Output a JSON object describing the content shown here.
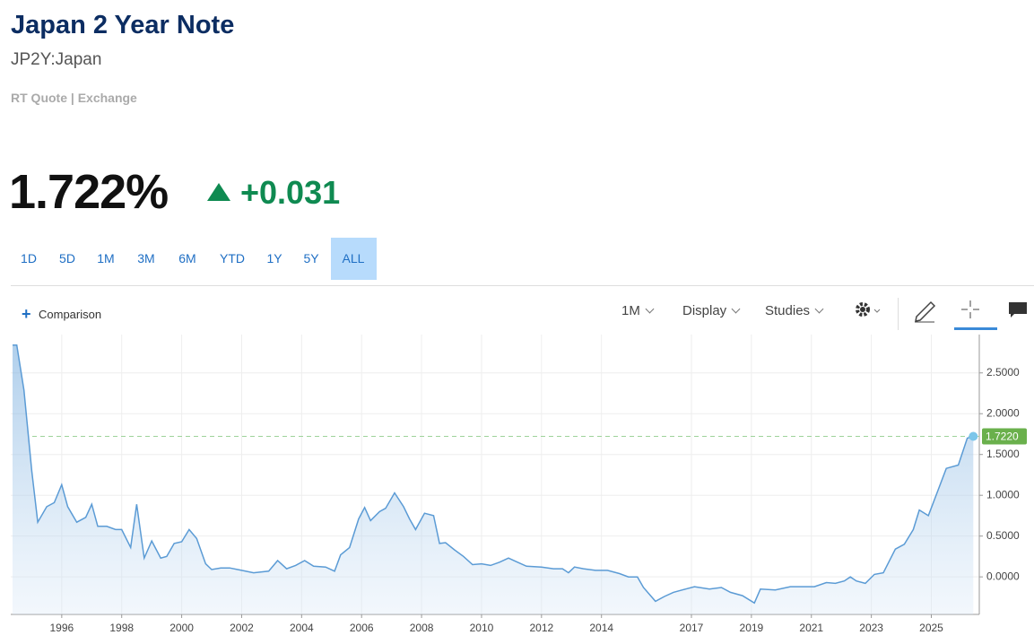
{
  "header": {
    "title": "Japan 2 Year Note",
    "symbol": "JP2Y:Japan",
    "quote_source": "RT Quote | Exchange"
  },
  "quote": {
    "price": "1.722%",
    "change": "+0.031"
  },
  "ranges": [
    "1D",
    "5D",
    "1M",
    "3M",
    "6M",
    "YTD",
    "1Y",
    "5Y",
    "ALL"
  ],
  "active_range": 8,
  "toolbar": {
    "comparison": "Comparison",
    "interval": "1M",
    "display": "Display",
    "studies": "Studies"
  },
  "chart_data": {
    "type": "area",
    "color": "#5b9bd5",
    "grid": true,
    "x": [
      1994.36,
      1994.5,
      1994.74,
      1995.0,
      1995.2,
      1995.5,
      1995.75,
      1996.0,
      1996.2,
      1996.5,
      1996.8,
      1997.0,
      1997.2,
      1997.5,
      1997.8,
      1998.0,
      1998.3,
      1998.5,
      1998.75,
      1999.0,
      1999.3,
      1999.5,
      1999.75,
      2000.0,
      2000.25,
      2000.5,
      2000.8,
      2001.0,
      2001.3,
      2001.6,
      2002.0,
      2002.4,
      2002.9,
      2003.2,
      2003.5,
      2003.8,
      2004.1,
      2004.4,
      2004.8,
      2005.1,
      2005.3,
      2005.6,
      2005.9,
      2006.1,
      2006.3,
      2006.6,
      2006.8,
      2007.1,
      2007.4,
      2007.6,
      2007.8,
      2008.1,
      2008.4,
      2008.6,
      2008.8,
      2009.1,
      2009.4,
      2009.7,
      2010.0,
      2010.3,
      2010.6,
      2010.9,
      2011.2,
      2011.5,
      2012.0,
      2012.4,
      2012.7,
      2012.9,
      2013.1,
      2013.4,
      2013.8,
      2014.2,
      2014.6,
      2014.9,
      2015.2,
      2015.4,
      2015.8,
      2016.1,
      2016.4,
      2016.8,
      2017.1,
      2017.6,
      2018.0,
      2018.3,
      2018.7,
      2019.1,
      2019.3,
      2019.8,
      2020.3,
      2020.7,
      2021.1,
      2021.5,
      2021.8,
      2022.1,
      2022.3,
      2022.5,
      2022.8,
      2023.1,
      2023.4,
      2023.8,
      2024.1,
      2024.4,
      2024.6,
      2024.9,
      2025.2,
      2025.5,
      2025.9,
      2026.2,
      2026.4
    ],
    "values": [
      2.84,
      2.84,
      2.29,
      1.3,
      0.67,
      0.86,
      0.91,
      1.13,
      0.86,
      0.67,
      0.73,
      0.89,
      0.62,
      0.62,
      0.58,
      0.58,
      0.36,
      0.89,
      0.23,
      0.44,
      0.23,
      0.25,
      0.41,
      0.43,
      0.58,
      0.47,
      0.16,
      0.09,
      0.11,
      0.11,
      0.08,
      0.05,
      0.07,
      0.2,
      0.1,
      0.14,
      0.2,
      0.13,
      0.12,
      0.07,
      0.27,
      0.36,
      0.71,
      0.85,
      0.69,
      0.8,
      0.84,
      1.03,
      0.86,
      0.71,
      0.58,
      0.78,
      0.75,
      0.41,
      0.42,
      0.33,
      0.25,
      0.15,
      0.16,
      0.14,
      0.18,
      0.23,
      0.18,
      0.13,
      0.12,
      0.1,
      0.1,
      0.05,
      0.12,
      0.1,
      0.08,
      0.08,
      0.04,
      0.0,
      0.0,
      -0.13,
      -0.3,
      -0.24,
      -0.19,
      -0.15,
      -0.12,
      -0.15,
      -0.13,
      -0.19,
      -0.23,
      -0.32,
      -0.15,
      -0.16,
      -0.12,
      -0.12,
      -0.12,
      -0.07,
      -0.08,
      -0.05,
      0.0,
      -0.05,
      -0.08,
      0.03,
      0.05,
      0.34,
      0.4,
      0.58,
      0.82,
      0.75,
      1.04,
      1.33,
      1.37,
      1.7,
      1.722
    ],
    "xlim": [
      1994.3,
      2026.6
    ],
    "xticks": [
      1996,
      1998,
      2000,
      2002,
      2004,
      2006,
      2008,
      2010,
      2012,
      2014,
      2017,
      2019,
      2021,
      2023,
      2025
    ],
    "ylim": [
      -0.46,
      2.97
    ],
    "yticks": [
      {
        "value": 0,
        "label": "0.0000"
      },
      {
        "value": 0.5,
        "label": "0.5000"
      },
      {
        "value": 1,
        "label": "1.0000"
      },
      {
        "value": 1.5,
        "label": "1.5000"
      },
      {
        "value": 2,
        "label": "2.0000"
      },
      {
        "value": 2.5,
        "label": "2.5000"
      }
    ],
    "reference_line": {
      "value": 1.722,
      "label": "1.7220"
    }
  }
}
